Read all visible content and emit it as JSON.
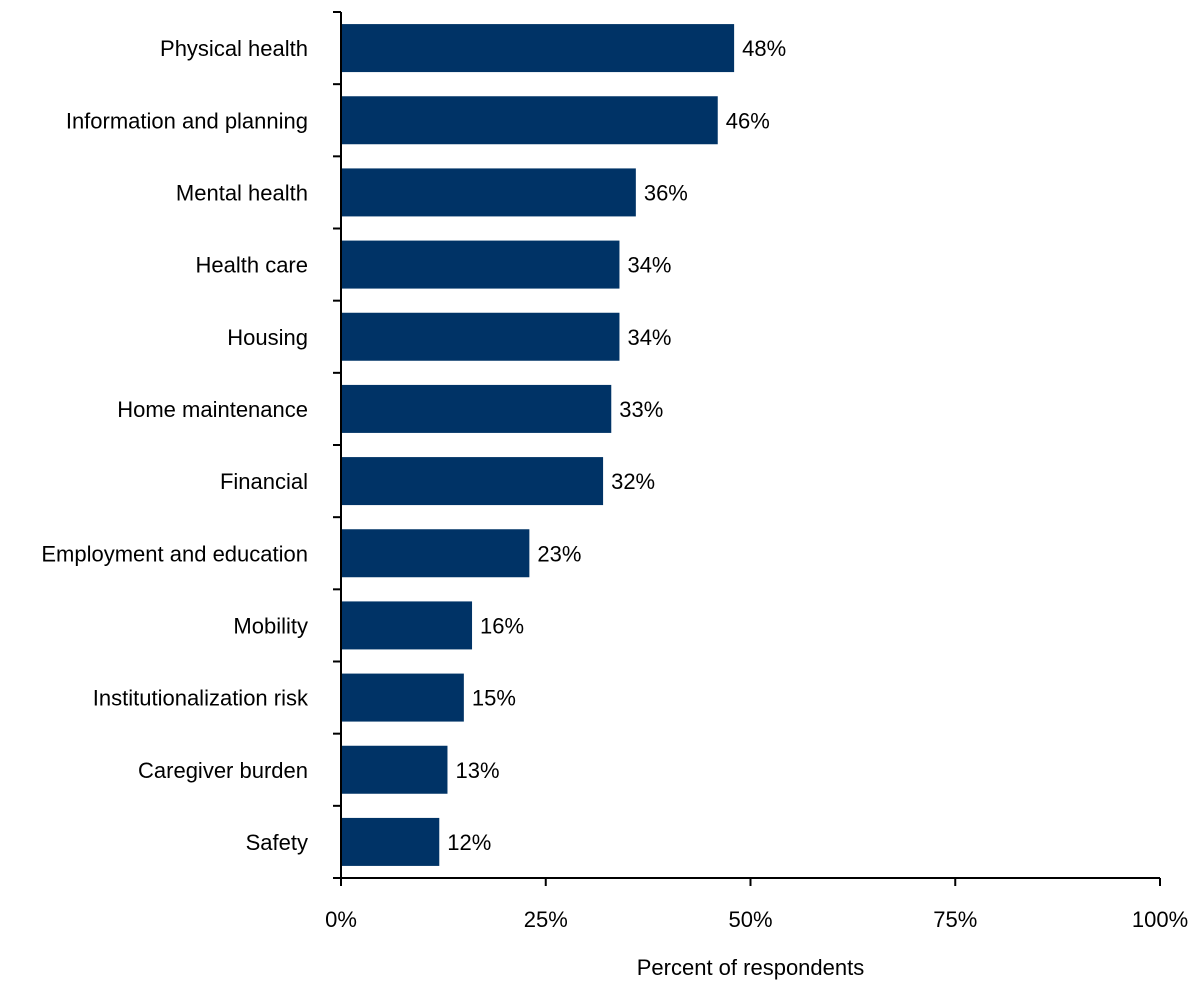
{
  "chart_data": {
    "type": "bar",
    "orientation": "horizontal",
    "categories": [
      "Physical health",
      "Information and planning",
      "Mental health",
      "Health care",
      "Housing",
      "Home maintenance",
      "Financial",
      "Employment and education",
      "Mobility",
      "Institutionalization risk",
      "Caregiver burden",
      "Safety"
    ],
    "values": [
      48,
      46,
      36,
      34,
      34,
      33,
      32,
      23,
      16,
      15,
      13,
      12
    ],
    "value_labels": [
      "48%",
      "46%",
      "36%",
      "34%",
      "34%",
      "33%",
      "32%",
      "23%",
      "16%",
      "15%",
      "13%",
      "12%"
    ],
    "xlim": [
      0,
      100
    ],
    "xticks": [
      0,
      25,
      50,
      75,
      100
    ],
    "xtick_labels": [
      "0%",
      "25%",
      "50%",
      "75%",
      "100%"
    ],
    "xlabel": "Percent of respondents",
    "ylabel": "",
    "title": "",
    "grid": false,
    "bar_color": "#003366"
  }
}
